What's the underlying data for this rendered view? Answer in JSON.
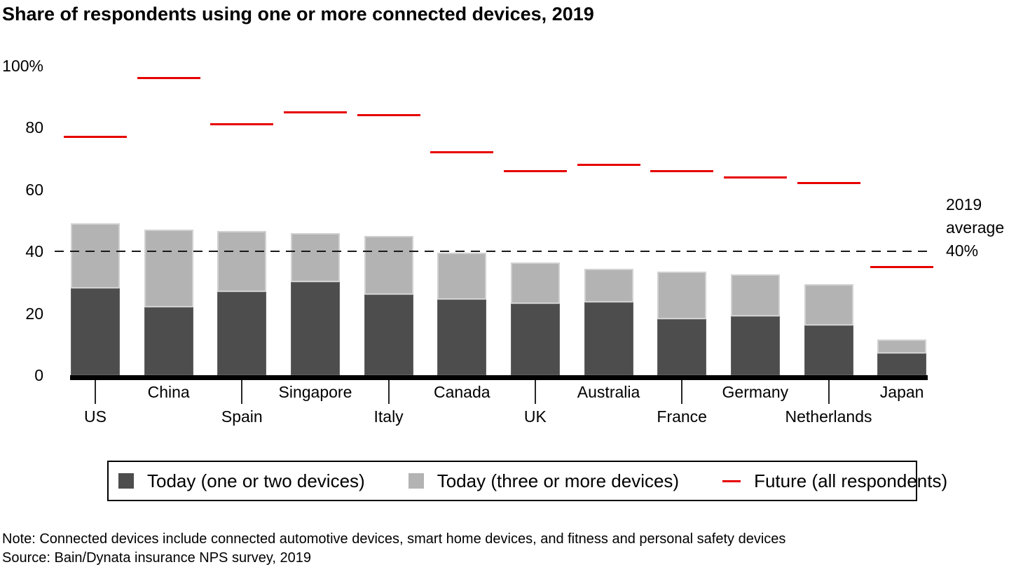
{
  "chart_data": {
    "type": "bar",
    "stacked": true,
    "title": "Share of respondents using one or more connected devices, 2019",
    "categories": [
      "US",
      "China",
      "Spain",
      "Singapore",
      "Italy",
      "Canada",
      "UK",
      "Australia",
      "France",
      "Germany",
      "Netherlands",
      "Japan"
    ],
    "series": [
      {
        "name": "Today (one or two devices)",
        "render": "bar",
        "color": "#4d4d4d",
        "values": [
          28,
          22,
          27,
          30,
          26,
          24.5,
          23,
          23.5,
          18,
          19,
          16,
          7
        ]
      },
      {
        "name": "Today (three or more devices)",
        "render": "bar",
        "color": "#b3b3b3",
        "values": [
          21,
          25,
          19.5,
          16,
          19,
          15,
          13.5,
          11,
          15.5,
          13.5,
          13.5,
          4.5
        ]
      },
      {
        "name": "Future (all respondents)",
        "render": "line-marker",
        "color": "#e60000",
        "values": [
          77,
          96,
          81,
          85,
          84,
          72,
          66,
          68,
          66,
          64,
          62,
          35
        ]
      }
    ],
    "today_totals": [
      49,
      47,
      46.5,
      46,
      45,
      39.5,
      36.5,
      34.5,
      33.5,
      32.5,
      29.5,
      11.5
    ],
    "ylim": [
      0,
      100
    ],
    "yticks": {
      "values": [
        100,
        80,
        60,
        40,
        20,
        0
      ],
      "labels": [
        "100%",
        "80",
        "60",
        "40",
        "20",
        "0"
      ]
    },
    "grid": "none",
    "reference_line": {
      "value": 40,
      "style": "dashed",
      "label": [
        "2019",
        "average",
        "40%"
      ]
    },
    "legend_position": "bottom"
  },
  "legend": {
    "items": [
      {
        "label": "Today (one or two devices)",
        "swatch": "dark-gray-square"
      },
      {
        "label": "Today (three or more devices)",
        "swatch": "light-gray-square"
      },
      {
        "label": "Future (all respondents)",
        "swatch": "red-line"
      }
    ]
  },
  "footer": {
    "note": "Note: Connected devices include connected automotive devices, smart home devices, and fitness and personal safety devices",
    "source": "Source: Bain/Dynata insurance NPS survey, 2019"
  }
}
